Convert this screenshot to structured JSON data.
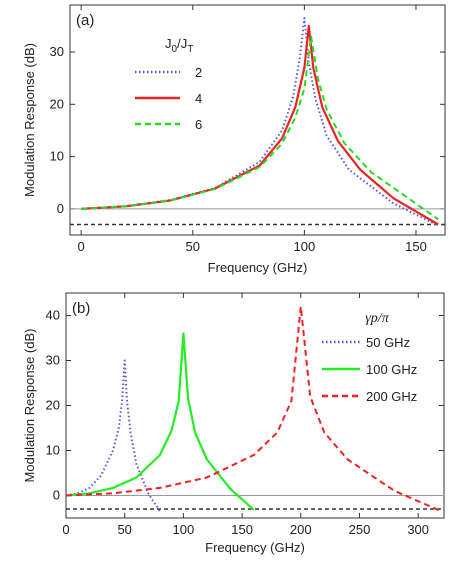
{
  "chart_data": [
    {
      "type": "line",
      "panel_label": "(a)",
      "xlabel": "Frequency (GHz)",
      "ylabel": "Modulation Response (dB)",
      "xlim": [
        -5,
        163
      ],
      "ylim": [
        -5,
        39
      ],
      "xticks": [
        0,
        50,
        100,
        150
      ],
      "yticks": [
        0,
        10,
        20,
        30
      ],
      "legend_title": "J0/JT",
      "legend_position": "center-left",
      "reference_lines": [
        {
          "y": 0,
          "style": "solid-gray"
        },
        {
          "y": -3,
          "style": "dashed-dark"
        }
      ],
      "series": [
        {
          "name": "2",
          "color": "#5555dd",
          "style": "dotted",
          "x": [
            0,
            20,
            40,
            60,
            80,
            90,
            95,
            98,
            100,
            102,
            105,
            110,
            120,
            140,
            160
          ],
          "y": [
            0,
            0.5,
            1.7,
            4.0,
            9.0,
            15.0,
            21.5,
            29.0,
            36.5,
            28.0,
            21.0,
            14.0,
            7.5,
            1.0,
            -3.2
          ]
        },
        {
          "name": "4",
          "color": "#ee2222",
          "style": "solid",
          "x": [
            0,
            20,
            40,
            60,
            80,
            90,
            96,
            100,
            102,
            104,
            108,
            115,
            125,
            140,
            160
          ],
          "y": [
            0,
            0.5,
            1.6,
            3.9,
            8.3,
            13.5,
            19.5,
            27.0,
            35.0,
            27.0,
            19.5,
            13.0,
            7.5,
            2.0,
            -3.0
          ]
        },
        {
          "name": "6",
          "color": "#22dd22",
          "style": "dashed",
          "x": [
            0,
            20,
            40,
            60,
            80,
            90,
            96,
            100,
            103,
            106,
            110,
            118,
            130,
            145,
            160
          ],
          "y": [
            0,
            0.5,
            1.6,
            3.8,
            8.0,
            12.5,
            17.5,
            23.0,
            33.0,
            25.0,
            19.0,
            12.5,
            7.0,
            2.5,
            -2.0
          ]
        }
      ]
    },
    {
      "type": "line",
      "panel_label": "(b)",
      "xlabel": "Frequency (GHz)",
      "ylabel": "Modulation Response (dB)",
      "xlim": [
        0,
        322
      ],
      "ylim": [
        -5,
        45
      ],
      "xticks": [
        0,
        50,
        100,
        150,
        200,
        250,
        300
      ],
      "yticks": [
        0,
        10,
        20,
        30,
        40
      ],
      "legend_title": "γp/π",
      "legend_position": "top-right",
      "reference_lines": [
        {
          "y": 0,
          "style": "solid-gray"
        },
        {
          "y": -3,
          "style": "dashed-dark"
        }
      ],
      "series": [
        {
          "name": "50 GHz",
          "color": "#5555dd",
          "style": "dotted",
          "x": [
            0,
            10,
            20,
            30,
            40,
            45,
            48,
            50,
            52,
            55,
            60,
            70,
            80
          ],
          "y": [
            0,
            0.5,
            1.7,
            4.5,
            10.0,
            15.0,
            21.5,
            30.0,
            21.0,
            14.0,
            7.0,
            0.5,
            -3.5
          ]
        },
        {
          "name": "100 GHz",
          "color": "#22ee22",
          "style": "solid",
          "x": [
            0,
            20,
            40,
            60,
            80,
            90,
            96,
            100,
            104,
            110,
            120,
            140,
            160
          ],
          "y": [
            0,
            0.5,
            1.7,
            4.0,
            9.0,
            14.5,
            21.0,
            36.0,
            21.5,
            14.0,
            8.0,
            1.5,
            -3.2
          ]
        },
        {
          "name": "200 GHz",
          "color": "#ee2222",
          "style": "dashed",
          "x": [
            0,
            40,
            80,
            120,
            160,
            180,
            192,
            200,
            208,
            220,
            240,
            280,
            320
          ],
          "y": [
            0,
            0.5,
            1.7,
            4.0,
            9.0,
            14.0,
            21.0,
            42.0,
            22.0,
            14.0,
            8.0,
            1.0,
            -3.5
          ]
        }
      ]
    }
  ]
}
